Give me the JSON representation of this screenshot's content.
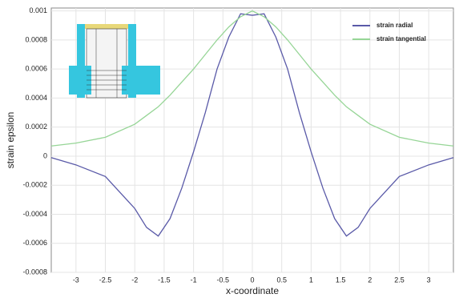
{
  "chart_data": {
    "type": "line",
    "x_label": "x-coordinate",
    "y_label": "strain epsilon",
    "x": [
      -3.42,
      -3,
      -2.5,
      -2,
      -1.8,
      -1.6,
      -1.4,
      -1.2,
      -1,
      -0.8,
      -0.6,
      -0.4,
      -0.2,
      0,
      0.2,
      0.4,
      0.6,
      0.8,
      1,
      1.2,
      1.4,
      1.6,
      1.8,
      2,
      2.5,
      3,
      3.42
    ],
    "series": [
      {
        "name": "strain radial",
        "color": "#5a5aa8",
        "values": [
          -1e-05,
          -6e-05,
          -0.00014,
          -0.00036,
          -0.00049,
          -0.00055,
          -0.00043,
          -0.00022,
          3e-05,
          0.0003,
          0.0006,
          0.00082,
          0.00098,
          0.00097,
          0.00098,
          0.00082,
          0.0006,
          0.0003,
          3e-05,
          -0.00022,
          -0.00043,
          -0.00055,
          -0.00049,
          -0.00036,
          -0.00014,
          -6e-05,
          -1e-05
        ]
      },
      {
        "name": "strain tangential",
        "color": "#96d596",
        "values": [
          7e-05,
          9e-05,
          0.00013,
          0.00022,
          0.00028,
          0.00034,
          0.00042,
          0.00051,
          0.0006,
          0.0007,
          0.0008,
          0.00089,
          0.00096,
          0.001,
          0.00096,
          0.00089,
          0.0008,
          0.0007,
          0.0006,
          0.00051,
          0.00042,
          0.00034,
          0.00028,
          0.00022,
          0.00013,
          9e-05,
          7e-05
        ]
      }
    ],
    "xlim": [
      -3.42,
      3.42
    ],
    "xticks": [
      -3,
      -2.5,
      -2,
      -1.5,
      -1,
      -0.5,
      0,
      0.5,
      1,
      1.5,
      2,
      2.5,
      3
    ],
    "ylim": [
      -0.0008,
      0.00102
    ],
    "yticks": [
      -0.0008,
      -0.0006,
      -0.0004,
      -0.0002,
      0,
      0.0002,
      0.0004,
      0.0006,
      0.0008,
      0.001
    ],
    "grid": true,
    "legend": "upper right"
  }
}
